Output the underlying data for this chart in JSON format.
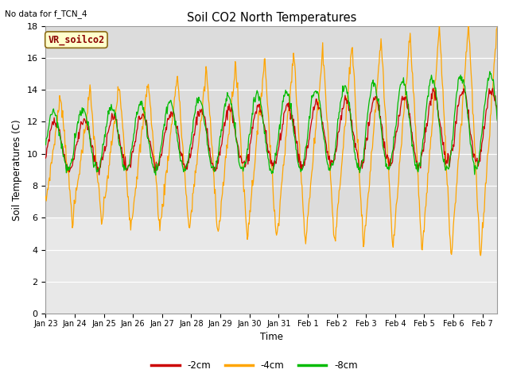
{
  "title": "Soil CO2 North Temperatures",
  "no_data_label": "No data for f_TCN_4",
  "xlabel": "Time",
  "ylabel": "Soil Temperatures (C)",
  "ylim": [
    0,
    18
  ],
  "yticks": [
    0,
    2,
    4,
    6,
    8,
    10,
    12,
    14,
    16,
    18
  ],
  "xtick_labels": [
    "Jan 23",
    "Jan 24",
    "Jan 25",
    "Jan 26",
    "Jan 27",
    "Jan 28",
    "Jan 29",
    "Jan 30",
    "Jan 31",
    "Feb 1",
    "Feb 2",
    "Feb 3",
    "Feb 4",
    "Feb 5",
    "Feb 6",
    "Feb 7"
  ],
  "color_2cm": "#cc0000",
  "color_4cm": "#ffa500",
  "color_8cm": "#00bb00",
  "legend_label_2cm": "-2cm",
  "legend_label_4cm": "-4cm",
  "legend_label_8cm": "-8cm",
  "station_label": "VR_soilco2",
  "bg_data": "#dcdcdc",
  "bg_lower": "#e8e8e8",
  "fig_bg": "#f0f0f0"
}
